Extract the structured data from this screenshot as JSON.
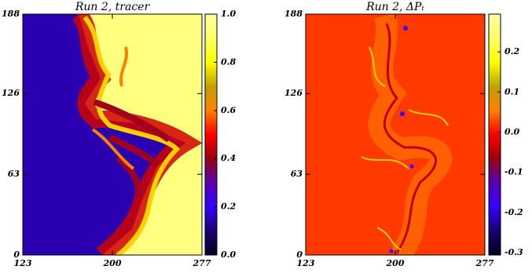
{
  "chart_data": [
    {
      "type": "heatmap",
      "title": "Run 2, tracer",
      "xlim": [
        123,
        277
      ],
      "xticks": [
        123,
        200,
        277
      ],
      "ylim": [
        0,
        188
      ],
      "yticks": [
        0,
        63,
        126,
        188
      ],
      "clim": [
        0,
        1
      ],
      "cticks": [
        {
          "value": 0,
          "label": "0.0"
        },
        0.2,
        0.4,
        0.6,
        0.8,
        {
          "value": 1,
          "label": "1.0"
        }
      ],
      "colors": [
        "#000020",
        "#1a0070",
        "#3300ff",
        "#5a00b0",
        "#9a0010",
        "#ff0000",
        "#ff8000",
        "#c0a000",
        "#ffff00",
        "#ffff66",
        "#ffffa0"
      ]
    },
    {
      "type": "heatmap",
      "title": "Run 2, ΔPₜ",
      "xlim": [
        123,
        277
      ],
      "xticks": [
        123,
        200,
        277
      ],
      "ylim": [
        0,
        188
      ],
      "yticks": [
        0,
        63,
        126,
        188
      ],
      "clim": [
        -0.306,
        0.294
      ],
      "cticks": [
        -0.3,
        -0.2,
        -0.1,
        {
          "value": 0,
          "label": "0.0"
        },
        0.1,
        0.2
      ],
      "colors": [
        "#000020",
        "#1a0070",
        "#3300ff",
        "#5a00b0",
        "#9a0010",
        "#ff0000",
        "#ff8000",
        "#c0a000",
        "#ffff00",
        "#ffff66",
        "#ffffa0"
      ]
    }
  ]
}
